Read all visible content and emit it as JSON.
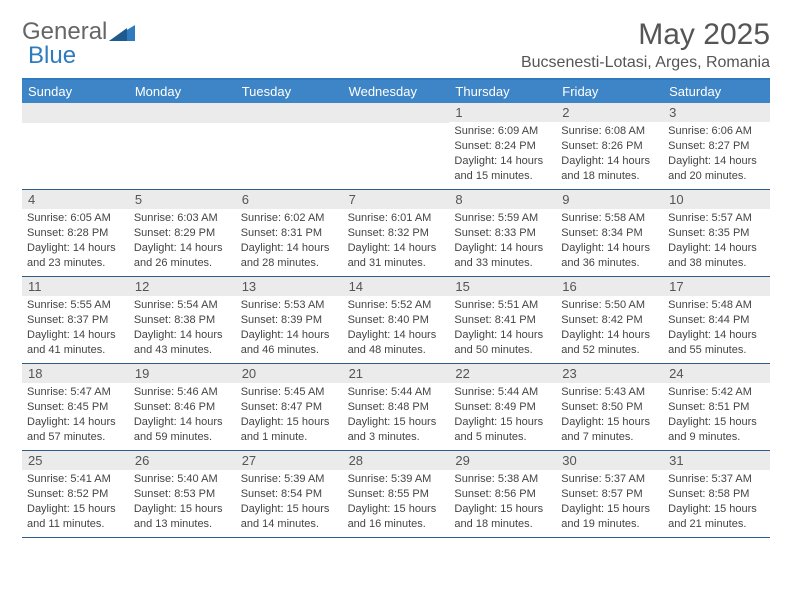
{
  "logo": {
    "general": "General",
    "blue": "Blue"
  },
  "title": "May 2025",
  "location": "Bucsenesti-Lotasi, Arges, Romania",
  "colors": {
    "header_bar": "#3d85c6",
    "accent_border": "#2f7bbf",
    "daynum_bg": "#ebebeb",
    "week_divider": "#2f5d8a",
    "text": "#444444"
  },
  "weekdays": [
    "Sunday",
    "Monday",
    "Tuesday",
    "Wednesday",
    "Thursday",
    "Friday",
    "Saturday"
  ],
  "weeks": [
    [
      {
        "empty": true
      },
      {
        "empty": true
      },
      {
        "empty": true
      },
      {
        "empty": true
      },
      {
        "day": "1",
        "sunrise": "Sunrise: 6:09 AM",
        "sunset": "Sunset: 8:24 PM",
        "daylight": "Daylight: 14 hours and 15 minutes."
      },
      {
        "day": "2",
        "sunrise": "Sunrise: 6:08 AM",
        "sunset": "Sunset: 8:26 PM",
        "daylight": "Daylight: 14 hours and 18 minutes."
      },
      {
        "day": "3",
        "sunrise": "Sunrise: 6:06 AM",
        "sunset": "Sunset: 8:27 PM",
        "daylight": "Daylight: 14 hours and 20 minutes."
      }
    ],
    [
      {
        "day": "4",
        "sunrise": "Sunrise: 6:05 AM",
        "sunset": "Sunset: 8:28 PM",
        "daylight": "Daylight: 14 hours and 23 minutes."
      },
      {
        "day": "5",
        "sunrise": "Sunrise: 6:03 AM",
        "sunset": "Sunset: 8:29 PM",
        "daylight": "Daylight: 14 hours and 26 minutes."
      },
      {
        "day": "6",
        "sunrise": "Sunrise: 6:02 AM",
        "sunset": "Sunset: 8:31 PM",
        "daylight": "Daylight: 14 hours and 28 minutes."
      },
      {
        "day": "7",
        "sunrise": "Sunrise: 6:01 AM",
        "sunset": "Sunset: 8:32 PM",
        "daylight": "Daylight: 14 hours and 31 minutes."
      },
      {
        "day": "8",
        "sunrise": "Sunrise: 5:59 AM",
        "sunset": "Sunset: 8:33 PM",
        "daylight": "Daylight: 14 hours and 33 minutes."
      },
      {
        "day": "9",
        "sunrise": "Sunrise: 5:58 AM",
        "sunset": "Sunset: 8:34 PM",
        "daylight": "Daylight: 14 hours and 36 minutes."
      },
      {
        "day": "10",
        "sunrise": "Sunrise: 5:57 AM",
        "sunset": "Sunset: 8:35 PM",
        "daylight": "Daylight: 14 hours and 38 minutes."
      }
    ],
    [
      {
        "day": "11",
        "sunrise": "Sunrise: 5:55 AM",
        "sunset": "Sunset: 8:37 PM",
        "daylight": "Daylight: 14 hours and 41 minutes."
      },
      {
        "day": "12",
        "sunrise": "Sunrise: 5:54 AM",
        "sunset": "Sunset: 8:38 PM",
        "daylight": "Daylight: 14 hours and 43 minutes."
      },
      {
        "day": "13",
        "sunrise": "Sunrise: 5:53 AM",
        "sunset": "Sunset: 8:39 PM",
        "daylight": "Daylight: 14 hours and 46 minutes."
      },
      {
        "day": "14",
        "sunrise": "Sunrise: 5:52 AM",
        "sunset": "Sunset: 8:40 PM",
        "daylight": "Daylight: 14 hours and 48 minutes."
      },
      {
        "day": "15",
        "sunrise": "Sunrise: 5:51 AM",
        "sunset": "Sunset: 8:41 PM",
        "daylight": "Daylight: 14 hours and 50 minutes."
      },
      {
        "day": "16",
        "sunrise": "Sunrise: 5:50 AM",
        "sunset": "Sunset: 8:42 PM",
        "daylight": "Daylight: 14 hours and 52 minutes."
      },
      {
        "day": "17",
        "sunrise": "Sunrise: 5:48 AM",
        "sunset": "Sunset: 8:44 PM",
        "daylight": "Daylight: 14 hours and 55 minutes."
      }
    ],
    [
      {
        "day": "18",
        "sunrise": "Sunrise: 5:47 AM",
        "sunset": "Sunset: 8:45 PM",
        "daylight": "Daylight: 14 hours and 57 minutes."
      },
      {
        "day": "19",
        "sunrise": "Sunrise: 5:46 AM",
        "sunset": "Sunset: 8:46 PM",
        "daylight": "Daylight: 14 hours and 59 minutes."
      },
      {
        "day": "20",
        "sunrise": "Sunrise: 5:45 AM",
        "sunset": "Sunset: 8:47 PM",
        "daylight": "Daylight: 15 hours and 1 minute."
      },
      {
        "day": "21",
        "sunrise": "Sunrise: 5:44 AM",
        "sunset": "Sunset: 8:48 PM",
        "daylight": "Daylight: 15 hours and 3 minutes."
      },
      {
        "day": "22",
        "sunrise": "Sunrise: 5:44 AM",
        "sunset": "Sunset: 8:49 PM",
        "daylight": "Daylight: 15 hours and 5 minutes."
      },
      {
        "day": "23",
        "sunrise": "Sunrise: 5:43 AM",
        "sunset": "Sunset: 8:50 PM",
        "daylight": "Daylight: 15 hours and 7 minutes."
      },
      {
        "day": "24",
        "sunrise": "Sunrise: 5:42 AM",
        "sunset": "Sunset: 8:51 PM",
        "daylight": "Daylight: 15 hours and 9 minutes."
      }
    ],
    [
      {
        "day": "25",
        "sunrise": "Sunrise: 5:41 AM",
        "sunset": "Sunset: 8:52 PM",
        "daylight": "Daylight: 15 hours and 11 minutes."
      },
      {
        "day": "26",
        "sunrise": "Sunrise: 5:40 AM",
        "sunset": "Sunset: 8:53 PM",
        "daylight": "Daylight: 15 hours and 13 minutes."
      },
      {
        "day": "27",
        "sunrise": "Sunrise: 5:39 AM",
        "sunset": "Sunset: 8:54 PM",
        "daylight": "Daylight: 15 hours and 14 minutes."
      },
      {
        "day": "28",
        "sunrise": "Sunrise: 5:39 AM",
        "sunset": "Sunset: 8:55 PM",
        "daylight": "Daylight: 15 hours and 16 minutes."
      },
      {
        "day": "29",
        "sunrise": "Sunrise: 5:38 AM",
        "sunset": "Sunset: 8:56 PM",
        "daylight": "Daylight: 15 hours and 18 minutes."
      },
      {
        "day": "30",
        "sunrise": "Sunrise: 5:37 AM",
        "sunset": "Sunset: 8:57 PM",
        "daylight": "Daylight: 15 hours and 19 minutes."
      },
      {
        "day": "31",
        "sunrise": "Sunrise: 5:37 AM",
        "sunset": "Sunset: 8:58 PM",
        "daylight": "Daylight: 15 hours and 21 minutes."
      }
    ]
  ]
}
